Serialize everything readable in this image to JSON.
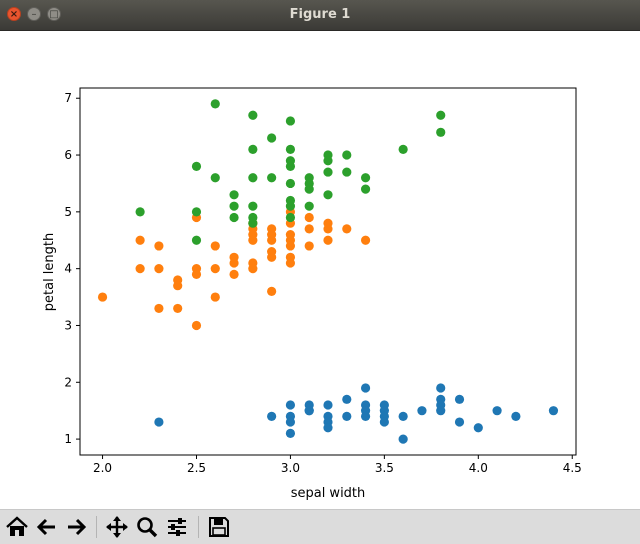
{
  "window": {
    "title": "Figure 1"
  },
  "chart_data": {
    "type": "scatter",
    "xlabel": "sepal width",
    "ylabel": "petal length",
    "xlim": [
      1.88,
      4.52
    ],
    "ylim": [
      0.72,
      7.18
    ],
    "xticks": [
      "2.0",
      "2.5",
      "3.0",
      "3.5",
      "4.0",
      "4.5"
    ],
    "yticks": [
      "1",
      "2",
      "3",
      "4",
      "5",
      "6",
      "7"
    ],
    "grid": false,
    "series": [
      {
        "color": "#1f77b4",
        "points": [
          [
            2.3,
            1.3
          ],
          [
            2.9,
            1.4
          ],
          [
            3.0,
            1.6
          ],
          [
            3.0,
            1.4
          ],
          [
            3.0,
            1.3
          ],
          [
            3.0,
            1.1
          ],
          [
            3.1,
            1.6
          ],
          [
            3.1,
            1.5
          ],
          [
            3.1,
            1.5
          ],
          [
            3.2,
            1.6
          ],
          [
            3.2,
            1.4
          ],
          [
            3.2,
            1.3
          ],
          [
            3.2,
            1.2
          ],
          [
            3.3,
            1.7
          ],
          [
            3.3,
            1.4
          ],
          [
            3.4,
            1.9
          ],
          [
            3.4,
            1.6
          ],
          [
            3.4,
            1.5
          ],
          [
            3.4,
            1.4
          ],
          [
            3.5,
            1.6
          ],
          [
            3.5,
            1.5
          ],
          [
            3.5,
            1.4
          ],
          [
            3.5,
            1.3
          ],
          [
            3.6,
            1.4
          ],
          [
            3.6,
            1.0
          ],
          [
            3.7,
            1.5
          ],
          [
            3.8,
            1.9
          ],
          [
            3.8,
            1.7
          ],
          [
            3.8,
            1.6
          ],
          [
            3.8,
            1.5
          ],
          [
            3.9,
            1.7
          ],
          [
            3.9,
            1.3
          ],
          [
            4.0,
            1.2
          ],
          [
            4.1,
            1.5
          ],
          [
            4.2,
            1.4
          ],
          [
            4.4,
            1.5
          ]
        ]
      },
      {
        "color": "#ff7f0e",
        "points": [
          [
            2.0,
            3.5
          ],
          [
            2.2,
            4.5
          ],
          [
            2.2,
            4.0
          ],
          [
            2.3,
            4.4
          ],
          [
            2.3,
            4.0
          ],
          [
            2.3,
            3.3
          ],
          [
            2.4,
            3.8
          ],
          [
            2.4,
            3.7
          ],
          [
            2.4,
            3.3
          ],
          [
            2.5,
            4.9
          ],
          [
            2.5,
            4.0
          ],
          [
            2.5,
            3.9
          ],
          [
            2.5,
            3.0
          ],
          [
            2.6,
            4.4
          ],
          [
            2.6,
            4.0
          ],
          [
            2.6,
            3.5
          ],
          [
            2.7,
            4.2
          ],
          [
            2.7,
            4.1
          ],
          [
            2.7,
            3.9
          ],
          [
            2.8,
            4.8
          ],
          [
            2.8,
            4.7
          ],
          [
            2.8,
            4.6
          ],
          [
            2.8,
            4.5
          ],
          [
            2.8,
            4.1
          ],
          [
            2.8,
            4.0
          ],
          [
            2.9,
            4.7
          ],
          [
            2.9,
            4.6
          ],
          [
            2.9,
            4.5
          ],
          [
            2.9,
            4.3
          ],
          [
            2.9,
            4.2
          ],
          [
            2.9,
            3.6
          ],
          [
            3.0,
            5.0
          ],
          [
            3.0,
            4.8
          ],
          [
            3.0,
            4.6
          ],
          [
            3.0,
            4.5
          ],
          [
            3.0,
            4.4
          ],
          [
            3.0,
            4.2
          ],
          [
            3.0,
            4.1
          ],
          [
            3.1,
            4.9
          ],
          [
            3.1,
            4.7
          ],
          [
            3.1,
            4.4
          ],
          [
            3.2,
            4.8
          ],
          [
            3.2,
            4.7
          ],
          [
            3.2,
            4.5
          ],
          [
            3.3,
            4.7
          ],
          [
            3.4,
            4.5
          ]
        ]
      },
      {
        "color": "#2ca02c",
        "points": [
          [
            2.2,
            5.0
          ],
          [
            2.5,
            5.8
          ],
          [
            2.5,
            5.0
          ],
          [
            2.5,
            4.5
          ],
          [
            2.6,
            6.9
          ],
          [
            2.6,
            5.6
          ],
          [
            2.7,
            5.3
          ],
          [
            2.7,
            5.1
          ],
          [
            2.7,
            4.9
          ],
          [
            2.8,
            6.7
          ],
          [
            2.8,
            6.1
          ],
          [
            2.8,
            5.6
          ],
          [
            2.8,
            5.1
          ],
          [
            2.8,
            4.9
          ],
          [
            2.8,
            4.8
          ],
          [
            2.9,
            6.3
          ],
          [
            2.9,
            5.6
          ],
          [
            3.0,
            6.6
          ],
          [
            3.0,
            6.1
          ],
          [
            3.0,
            5.9
          ],
          [
            3.0,
            5.8
          ],
          [
            3.0,
            5.5
          ],
          [
            3.0,
            5.2
          ],
          [
            3.0,
            5.1
          ],
          [
            3.0,
            4.9
          ],
          [
            3.1,
            5.6
          ],
          [
            3.1,
            5.5
          ],
          [
            3.1,
            5.4
          ],
          [
            3.1,
            5.1
          ],
          [
            3.2,
            6.0
          ],
          [
            3.2,
            5.9
          ],
          [
            3.2,
            5.7
          ],
          [
            3.2,
            5.3
          ],
          [
            3.3,
            6.0
          ],
          [
            3.3,
            5.7
          ],
          [
            3.4,
            5.6
          ],
          [
            3.4,
            5.4
          ],
          [
            3.6,
            6.1
          ],
          [
            3.8,
            6.7
          ],
          [
            3.8,
            6.4
          ]
        ]
      }
    ]
  },
  "toolbar": {
    "buttons": [
      {
        "name": "home-button",
        "icon": "home-icon"
      },
      {
        "name": "back-button",
        "icon": "arrow-left-icon"
      },
      {
        "name": "forward-button",
        "icon": "arrow-right-icon"
      },
      {
        "name": "pan-button",
        "icon": "move-icon"
      },
      {
        "name": "zoom-button",
        "icon": "magnifier-icon"
      },
      {
        "name": "configure-subplots-button",
        "icon": "sliders-icon"
      },
      {
        "name": "save-button",
        "icon": "floppy-disk-icon"
      }
    ]
  }
}
